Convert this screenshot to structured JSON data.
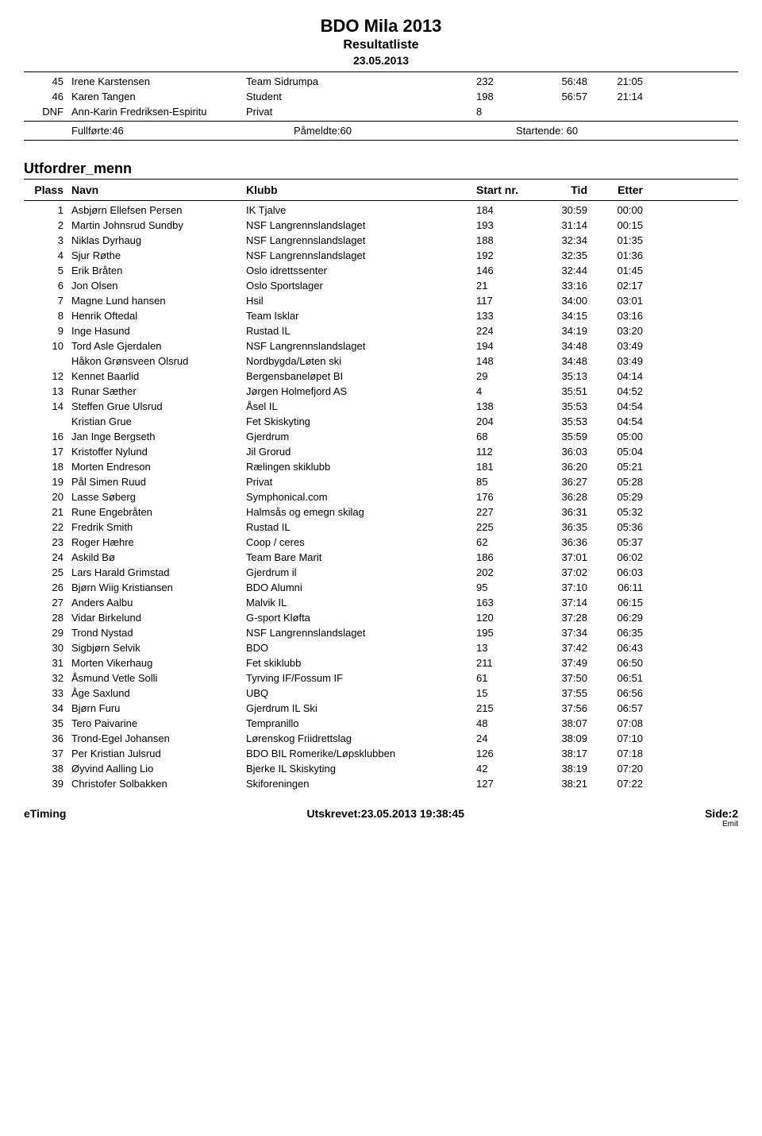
{
  "page_title": "BDO Mila 2013",
  "page_subtitle": "Resultatliste",
  "page_date": "23.05.2013",
  "prev_section_rows": [
    {
      "plass": "45",
      "navn": "Irene Karstensen",
      "klubb": "Team Sidrumpa",
      "start": "232",
      "tid": "56:48",
      "etter": "21:05"
    },
    {
      "plass": "46",
      "navn": "Karen Tangen",
      "klubb": "Student",
      "start": "198",
      "tid": "56:57",
      "etter": "21:14"
    },
    {
      "plass": "DNF",
      "navn": "Ann-Karin Fredriksen-Espiritu",
      "klubb": "Privat",
      "start": "8",
      "tid": "",
      "etter": ""
    }
  ],
  "summary": {
    "fullforte": "Fullførte:46",
    "pameldte": "Påmeldte:60",
    "startende": "Startende: 60"
  },
  "section_title": "Utfordrer_menn",
  "headers": {
    "plass": "Plass",
    "navn": "Navn",
    "klubb": "Klubb",
    "start": "Start nr.",
    "tid": "Tid",
    "etter": "Etter"
  },
  "results": [
    {
      "plass": "1",
      "navn": "Asbjørn Ellefsen Persen",
      "klubb": "IK Tjalve",
      "start": "184",
      "tid": "30:59",
      "etter": "00:00"
    },
    {
      "plass": "2",
      "navn": "Martin Johnsrud Sundby",
      "klubb": "NSF Langrennslandslaget",
      "start": "193",
      "tid": "31:14",
      "etter": "00:15"
    },
    {
      "plass": "3",
      "navn": "Niklas Dyrhaug",
      "klubb": "NSF Langrennslandslaget",
      "start": "188",
      "tid": "32:34",
      "etter": "01:35"
    },
    {
      "plass": "4",
      "navn": "Sjur Røthe",
      "klubb": "NSF Langrennslandslaget",
      "start": "192",
      "tid": "32:35",
      "etter": "01:36"
    },
    {
      "plass": "5",
      "navn": "Erik Bråten",
      "klubb": "Oslo idrettssenter",
      "start": "146",
      "tid": "32:44",
      "etter": "01:45"
    },
    {
      "plass": "6",
      "navn": "Jon Olsen",
      "klubb": "Oslo Sportslager",
      "start": "21",
      "tid": "33:16",
      "etter": "02:17"
    },
    {
      "plass": "7",
      "navn": "Magne Lund hansen",
      "klubb": "Hsil",
      "start": "117",
      "tid": "34:00",
      "etter": "03:01"
    },
    {
      "plass": "8",
      "navn": "Henrik Oftedal",
      "klubb": "Team Isklar",
      "start": "133",
      "tid": "34:15",
      "etter": "03:16"
    },
    {
      "plass": "9",
      "navn": "Inge Hasund",
      "klubb": "Rustad IL",
      "start": "224",
      "tid": "34:19",
      "etter": "03:20"
    },
    {
      "plass": "10",
      "navn": "Tord Asle Gjerdalen",
      "klubb": "NSF Langrennslandslaget",
      "start": "194",
      "tid": "34:48",
      "etter": "03:49"
    },
    {
      "plass": "",
      "navn": "Håkon Grønsveen Olsrud",
      "klubb": "Nordbygda/Løten ski",
      "start": "148",
      "tid": "34:48",
      "etter": "03:49"
    },
    {
      "plass": "12",
      "navn": "Kennet Baarlid",
      "klubb": "Bergensbaneløpet BI",
      "start": "29",
      "tid": "35:13",
      "etter": "04:14"
    },
    {
      "plass": "13",
      "navn": "Runar Sæther",
      "klubb": "Jørgen Holmefjord AS",
      "start": "4",
      "tid": "35:51",
      "etter": "04:52"
    },
    {
      "plass": "14",
      "navn": "Steffen Grue Ulsrud",
      "klubb": "Åsel IL",
      "start": "138",
      "tid": "35:53",
      "etter": "04:54"
    },
    {
      "plass": "",
      "navn": "Kristian Grue",
      "klubb": "Fet Skiskyting",
      "start": "204",
      "tid": "35:53",
      "etter": "04:54"
    },
    {
      "plass": "16",
      "navn": "Jan Inge Bergseth",
      "klubb": "Gjerdrum",
      "start": "68",
      "tid": "35:59",
      "etter": "05:00"
    },
    {
      "plass": "17",
      "navn": "Kristoffer Nylund",
      "klubb": "Jil Grorud",
      "start": "112",
      "tid": "36:03",
      "etter": "05:04"
    },
    {
      "plass": "18",
      "navn": "Morten Endreson",
      "klubb": "Rælingen skiklubb",
      "start": "181",
      "tid": "36:20",
      "etter": "05:21"
    },
    {
      "plass": "19",
      "navn": "Pål Simen Ruud",
      "klubb": "Privat",
      "start": "85",
      "tid": "36:27",
      "etter": "05:28"
    },
    {
      "plass": "20",
      "navn": "Lasse Søberg",
      "klubb": "Symphonical.com",
      "start": "176",
      "tid": "36:28",
      "etter": "05:29"
    },
    {
      "plass": "21",
      "navn": "Rune Engebråten",
      "klubb": "Halmsås og emegn skilag",
      "start": "227",
      "tid": "36:31",
      "etter": "05:32"
    },
    {
      "plass": "22",
      "navn": "Fredrik Smith",
      "klubb": "Rustad IL",
      "start": "225",
      "tid": "36:35",
      "etter": "05:36"
    },
    {
      "plass": "23",
      "navn": "Roger Hæhre",
      "klubb": "Coop / ceres",
      "start": "62",
      "tid": "36:36",
      "etter": "05:37"
    },
    {
      "plass": "24",
      "navn": "Askild Bø",
      "klubb": "Team Bare Marit",
      "start": "186",
      "tid": "37:01",
      "etter": "06:02"
    },
    {
      "plass": "25",
      "navn": "Lars Harald Grimstad",
      "klubb": "Gjerdrum il",
      "start": "202",
      "tid": "37:02",
      "etter": "06:03"
    },
    {
      "plass": "26",
      "navn": "Bjørn Wiig Kristiansen",
      "klubb": "BDO Alumni",
      "start": "95",
      "tid": "37:10",
      "etter": "06:11"
    },
    {
      "plass": "27",
      "navn": "Anders Aalbu",
      "klubb": "Malvik IL",
      "start": "163",
      "tid": "37:14",
      "etter": "06:15"
    },
    {
      "plass": "28",
      "navn": "Vidar Birkelund",
      "klubb": "G-sport Kløfta",
      "start": "120",
      "tid": "37:28",
      "etter": "06:29"
    },
    {
      "plass": "29",
      "navn": "Trond Nystad",
      "klubb": "NSF Langrennslandslaget",
      "start": "195",
      "tid": "37:34",
      "etter": "06:35"
    },
    {
      "plass": "30",
      "navn": "Sigbjørn Selvik",
      "klubb": "BDO",
      "start": "13",
      "tid": "37:42",
      "etter": "06:43"
    },
    {
      "plass": "31",
      "navn": "Morten Vikerhaug",
      "klubb": "Fet skiklubb",
      "start": "211",
      "tid": "37:49",
      "etter": "06:50"
    },
    {
      "plass": "32",
      "navn": "Åsmund Vetle Solli",
      "klubb": "Tyrving IF/Fossum IF",
      "start": "61",
      "tid": "37:50",
      "etter": "06:51"
    },
    {
      "plass": "33",
      "navn": "Åge Saxlund",
      "klubb": "UBQ",
      "start": "15",
      "tid": "37:55",
      "etter": "06:56"
    },
    {
      "plass": "34",
      "navn": "Bjørn Furu",
      "klubb": "Gjerdrum IL Ski",
      "start": "215",
      "tid": "37:56",
      "etter": "06:57"
    },
    {
      "plass": "35",
      "navn": "Tero Paivarine",
      "klubb": "Tempranillo",
      "start": "48",
      "tid": "38:07",
      "etter": "07:08"
    },
    {
      "plass": "36",
      "navn": "Trond-Egel Johansen",
      "klubb": "Lørenskog Friidrettslag",
      "start": "24",
      "tid": "38:09",
      "etter": "07:10"
    },
    {
      "plass": "37",
      "navn": "Per Kristian Julsrud",
      "klubb": "BDO BIL Romerike/Løpsklubben",
      "start": "126",
      "tid": "38:17",
      "etter": "07:18"
    },
    {
      "plass": "38",
      "navn": "Øyvind Aalling Lio",
      "klubb": "Bjerke IL Skiskyting",
      "start": "42",
      "tid": "38:19",
      "etter": "07:20"
    },
    {
      "plass": "39",
      "navn": "Christofer Solbakken",
      "klubb": "Skiforeningen",
      "start": "127",
      "tid": "38:21",
      "etter": "07:22"
    }
  ],
  "footer": {
    "left": "eTiming",
    "center": "Utskrevet:23.05.2013 19:38:45",
    "right": "Side:2",
    "emit": "Emit"
  }
}
